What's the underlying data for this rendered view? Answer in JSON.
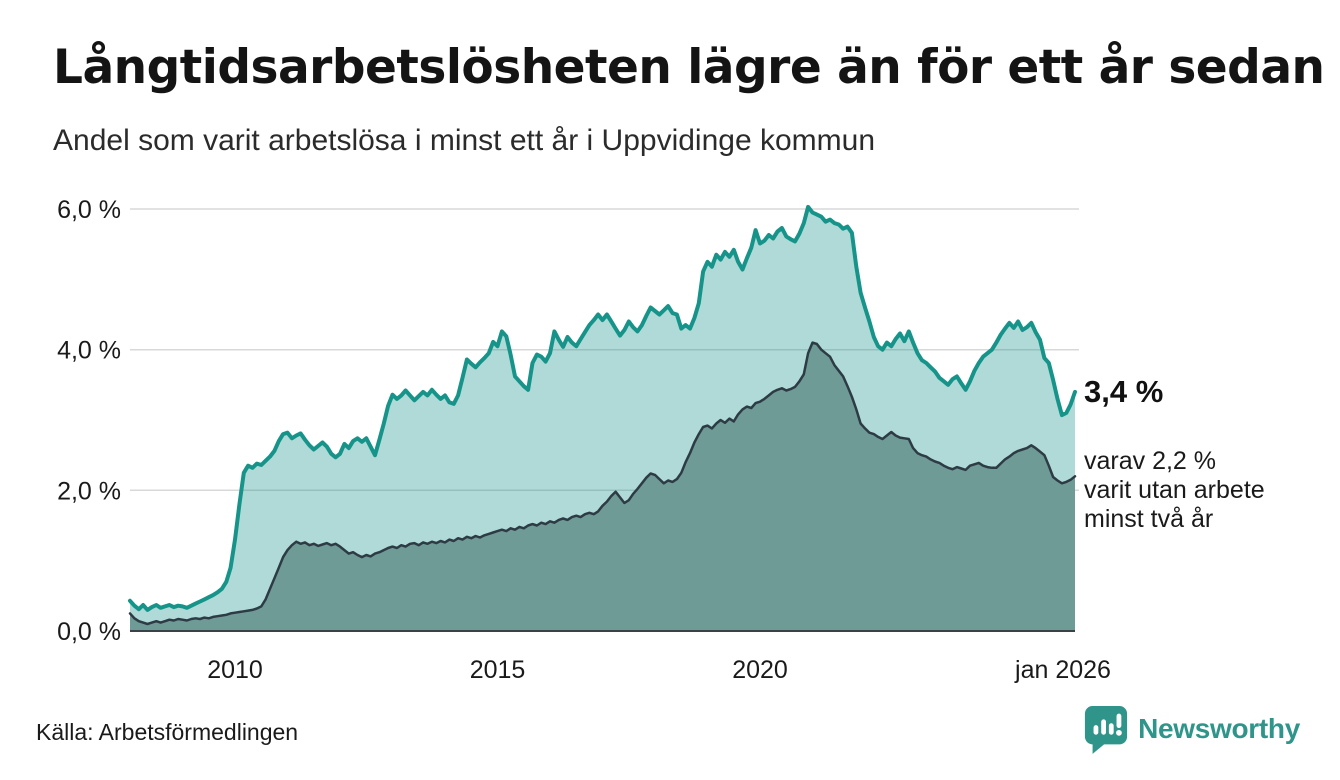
{
  "header": {
    "title": "Långtidsarbetslösheten lägre än för ett år sedan",
    "subtitle": "Andel som varit arbetslösa i minst ett år i Uppvidinge kommun"
  },
  "annotations": {
    "latest_value_label": "3,4 %",
    "detail_line1": "varav 2,2 %",
    "detail_line2": "varit utan arbete",
    "detail_line3": "minst två år"
  },
  "footer": {
    "source": "Källa: Arbetsförmedlingen",
    "brand_name": "Newsworthy",
    "brand_color": "#2f958b"
  },
  "chart_data": {
    "type": "area",
    "unit": "%",
    "frequency": "monthly",
    "x_start": "jan 2008",
    "x_end": "jan 2026",
    "ylim": [
      0,
      6
    ],
    "grid": true,
    "y_ticks": [
      {
        "value": 6,
        "label": "6,0 %"
      },
      {
        "value": 4,
        "label": "4,0 %"
      },
      {
        "value": 2,
        "label": "2,0 %"
      },
      {
        "value": 0,
        "label": "0,0 %"
      }
    ],
    "x_ticks": [
      {
        "index": 24,
        "label": "2010"
      },
      {
        "index": 84,
        "label": "2015"
      },
      {
        "index": 144,
        "label": "2020"
      },
      {
        "index": 216,
        "label": "jan 2026"
      }
    ],
    "colors": {
      "grid": "#d8d8d8",
      "axis": "#3a4247",
      "text": "#1a1a1a"
    },
    "series": [
      {
        "id": "minst-ett-ar",
        "name": "Arbetslösa minst ett år",
        "latest_value": 3.4,
        "line_color": "#17948a",
        "fill_color": "rgba(23,148,138,0.34)",
        "line_width": 4,
        "values": [
          0.43,
          0.36,
          0.31,
          0.37,
          0.3,
          0.34,
          0.37,
          0.33,
          0.35,
          0.37,
          0.34,
          0.36,
          0.35,
          0.33,
          0.36,
          0.39,
          0.42,
          0.45,
          0.48,
          0.51,
          0.55,
          0.6,
          0.7,
          0.9,
          1.3,
          1.8,
          2.25,
          2.35,
          2.32,
          2.38,
          2.36,
          2.42,
          2.48,
          2.56,
          2.7,
          2.8,
          2.82,
          2.74,
          2.78,
          2.81,
          2.72,
          2.64,
          2.58,
          2.63,
          2.68,
          2.62,
          2.52,
          2.47,
          2.52,
          2.66,
          2.6,
          2.7,
          2.74,
          2.69,
          2.74,
          2.62,
          2.5,
          2.72,
          2.95,
          3.2,
          3.36,
          3.3,
          3.35,
          3.42,
          3.35,
          3.28,
          3.34,
          3.4,
          3.35,
          3.43,
          3.36,
          3.3,
          3.35,
          3.25,
          3.23,
          3.35,
          3.6,
          3.86,
          3.8,
          3.75,
          3.82,
          3.88,
          3.95,
          4.11,
          4.05,
          4.26,
          4.19,
          3.93,
          3.62,
          3.55,
          3.48,
          3.43,
          3.81,
          3.93,
          3.9,
          3.83,
          3.95,
          4.26,
          4.14,
          4.04,
          4.18,
          4.1,
          4.05,
          4.15,
          4.25,
          4.35,
          4.42,
          4.5,
          4.42,
          4.5,
          4.4,
          4.3,
          4.2,
          4.28,
          4.4,
          4.32,
          4.26,
          4.35,
          4.48,
          4.6,
          4.55,
          4.5,
          4.56,
          4.62,
          4.52,
          4.5,
          4.3,
          4.35,
          4.3,
          4.45,
          4.66,
          5.11,
          5.25,
          5.18,
          5.35,
          5.28,
          5.39,
          5.32,
          5.42,
          5.25,
          5.14,
          5.3,
          5.45,
          5.7,
          5.51,
          5.55,
          5.63,
          5.58,
          5.68,
          5.73,
          5.61,
          5.57,
          5.54,
          5.65,
          5.8,
          6.03,
          5.95,
          5.92,
          5.89,
          5.82,
          5.85,
          5.8,
          5.78,
          5.72,
          5.75,
          5.66,
          5.18,
          4.81,
          4.6,
          4.4,
          4.18,
          4.05,
          4.0,
          4.1,
          4.05,
          4.15,
          4.23,
          4.12,
          4.26,
          4.1,
          3.95,
          3.85,
          3.81,
          3.75,
          3.69,
          3.6,
          3.55,
          3.5,
          3.58,
          3.62,
          3.52,
          3.43,
          3.55,
          3.7,
          3.81,
          3.9,
          3.95,
          4.0,
          4.1,
          4.21,
          4.3,
          4.38,
          4.31,
          4.4,
          4.28,
          4.32,
          4.38,
          4.25,
          4.14,
          3.88,
          3.81,
          3.57,
          3.3,
          3.07,
          3.1,
          3.22,
          3.4
        ]
      },
      {
        "id": "minst-tva-ar",
        "name": "Varav utan arbete minst två år",
        "latest_value": 2.2,
        "line_color": "#2d3b45",
        "fill_color": "#6f9b97",
        "line_width": 2.5,
        "values": [
          0.25,
          0.18,
          0.14,
          0.12,
          0.1,
          0.12,
          0.14,
          0.12,
          0.14,
          0.16,
          0.15,
          0.17,
          0.16,
          0.15,
          0.17,
          0.18,
          0.17,
          0.19,
          0.18,
          0.2,
          0.21,
          0.22,
          0.23,
          0.25,
          0.26,
          0.27,
          0.28,
          0.29,
          0.3,
          0.32,
          0.35,
          0.45,
          0.6,
          0.75,
          0.9,
          1.05,
          1.15,
          1.22,
          1.27,
          1.24,
          1.26,
          1.22,
          1.24,
          1.21,
          1.23,
          1.25,
          1.22,
          1.24,
          1.2,
          1.15,
          1.1,
          1.12,
          1.08,
          1.05,
          1.08,
          1.06,
          1.1,
          1.12,
          1.15,
          1.18,
          1.2,
          1.18,
          1.22,
          1.2,
          1.24,
          1.25,
          1.22,
          1.26,
          1.24,
          1.27,
          1.25,
          1.28,
          1.26,
          1.3,
          1.28,
          1.32,
          1.3,
          1.34,
          1.32,
          1.35,
          1.33,
          1.36,
          1.38,
          1.4,
          1.42,
          1.44,
          1.42,
          1.46,
          1.44,
          1.48,
          1.46,
          1.5,
          1.52,
          1.5,
          1.54,
          1.52,
          1.56,
          1.54,
          1.58,
          1.6,
          1.58,
          1.62,
          1.64,
          1.62,
          1.66,
          1.68,
          1.66,
          1.7,
          1.78,
          1.84,
          1.92,
          1.98,
          1.9,
          1.82,
          1.86,
          1.95,
          2.02,
          2.1,
          2.18,
          2.24,
          2.22,
          2.16,
          2.1,
          2.14,
          2.12,
          2.16,
          2.25,
          2.4,
          2.53,
          2.68,
          2.8,
          2.9,
          2.92,
          2.88,
          2.95,
          3.0,
          2.96,
          3.02,
          2.98,
          3.08,
          3.15,
          3.19,
          3.17,
          3.24,
          3.26,
          3.3,
          3.35,
          3.4,
          3.43,
          3.45,
          3.42,
          3.44,
          3.47,
          3.55,
          3.65,
          3.95,
          4.1,
          4.08,
          4.0,
          3.95,
          3.9,
          3.78,
          3.7,
          3.62,
          3.48,
          3.33,
          3.15,
          2.95,
          2.88,
          2.82,
          2.8,
          2.76,
          2.73,
          2.78,
          2.83,
          2.78,
          2.75,
          2.74,
          2.73,
          2.6,
          2.53,
          2.5,
          2.48,
          2.44,
          2.41,
          2.39,
          2.35,
          2.32,
          2.3,
          2.33,
          2.31,
          2.29,
          2.35,
          2.37,
          2.39,
          2.35,
          2.33,
          2.32,
          2.32,
          2.38,
          2.44,
          2.48,
          2.53,
          2.56,
          2.58,
          2.6,
          2.64,
          2.6,
          2.55,
          2.5,
          2.35,
          2.19,
          2.14,
          2.1,
          2.12,
          2.15,
          2.2
        ]
      }
    ]
  }
}
